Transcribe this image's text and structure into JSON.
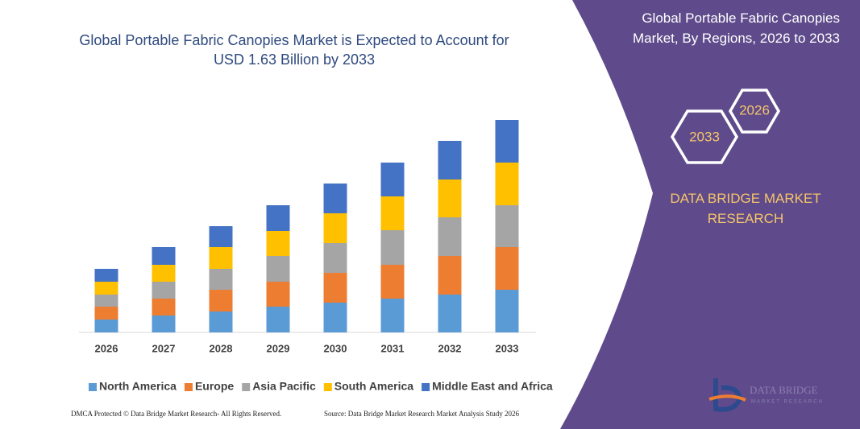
{
  "chart_data": {
    "type": "stacked-bar",
    "title": "Global Portable Fabric Canopies Market is Expected to Account for USD 1.63 Billion by 2033",
    "categories": [
      "2026",
      "2027",
      "2028",
      "2029",
      "2030",
      "2031",
      "2032",
      "2033"
    ],
    "series": [
      {
        "name": "North America",
        "color": "#5b9bd5",
        "values": [
          16,
          21,
          26,
          32,
          37,
          42,
          47,
          53
        ]
      },
      {
        "name": "Europe",
        "color": "#ed7d31",
        "values": [
          16,
          21,
          27,
          31,
          37,
          42,
          48,
          53
        ]
      },
      {
        "name": "Asia Pacific",
        "color": "#a5a5a5",
        "values": [
          15,
          21,
          26,
          32,
          37,
          43,
          48,
          52
        ]
      },
      {
        "name": "South America",
        "color": "#ffc000",
        "values": [
          16,
          21,
          27,
          31,
          37,
          42,
          47,
          53
        ]
      },
      {
        "name": "Middle East and Africa",
        "color": "#4472c4",
        "values": [
          16,
          22,
          26,
          32,
          37,
          42,
          48,
          53
        ]
      }
    ],
    "ylim": [
      0,
      264
    ]
  },
  "panel": {
    "title": "Global Portable Fabric Canopies Market, By Regions, 2026 to 2033",
    "hex_small": "2026",
    "hex_large": "2033",
    "brand": "DATA BRIDGE MARKET RESEARCH",
    "logo_name": "DATA BRIDGE",
    "logo_sub": "MARKET RESEARCH"
  },
  "footer": {
    "left": "DMCA Protected © Data Bridge Market Research- All Rights Reserved.",
    "right": "Source: Data Bridge Market Research Market Analysis Study 2026"
  }
}
